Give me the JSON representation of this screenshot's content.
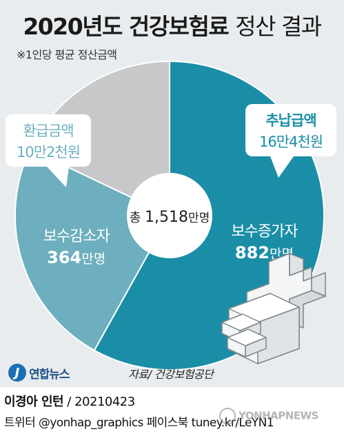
{
  "header": {
    "title_bold": "2020년도 건강보험료",
    "title_light": "정산 결과",
    "subtitle": "※1인당 평균 정산금액"
  },
  "chart_data": {
    "type": "pie",
    "center_label": {
      "prefix": "총 ",
      "value": "1,518",
      "unit": "만명"
    },
    "slices": [
      {
        "key": "increase",
        "label": "보수증가자",
        "value": 882,
        "value_text": "882",
        "unit": "만명",
        "color": "#1b8ea7"
      },
      {
        "key": "decrease",
        "label": "보수감소자",
        "value": 364,
        "value_text": "364",
        "unit": "만명",
        "color": "#6dafbe"
      },
      {
        "key": "unchanged",
        "value": 272,
        "color": "#c7c8c9"
      }
    ],
    "callouts": [
      {
        "key": "additional",
        "title": "추납급액",
        "amount": "16만4천원",
        "color": "#1b8ea7",
        "for": "increase"
      },
      {
        "key": "refund",
        "title": "환급금액",
        "amount": "10만2천원",
        "color": "#6dafbe",
        "for": "decrease"
      }
    ]
  },
  "footer": {
    "source": "자료/ 건강보험공단",
    "logo_text": "연합뉴스",
    "logo_mark": "J",
    "credit_name": "이경아 인턴",
    "credit_date": " / 20210423",
    "social": "트위터 @yonhap_graphics  페이스북 tuney.kr/LeYN1",
    "watermark": "YONHAPNEWS"
  },
  "colors": {
    "background": "#e9ecee",
    "icon_fill": "#f4f5f6",
    "icon_stroke": "#7d8589"
  }
}
